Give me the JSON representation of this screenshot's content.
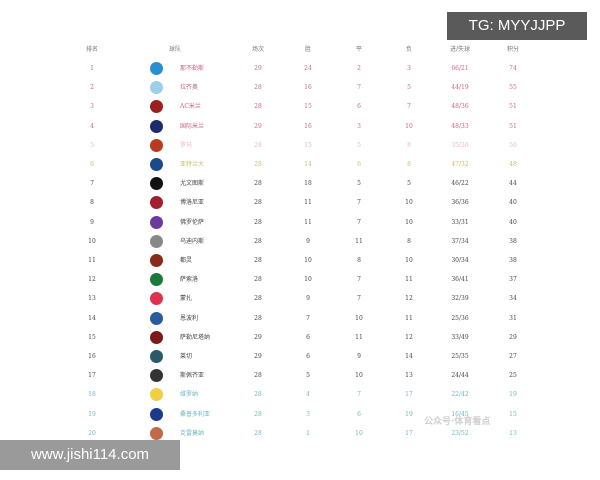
{
  "headers": [
    "排名",
    "球队",
    "场次",
    "胜",
    "平",
    "负",
    "进/失球",
    "积分"
  ],
  "zone_colors": {
    "champions": "#c4687e",
    "europa": "#e8b8c4",
    "conference": "#cdb96a",
    "normal": "#444444",
    "relegation": "#6cb6c0"
  },
  "rows": [
    {
      "rank": "1",
      "team": "那不勒斯",
      "played": "29",
      "won": "24",
      "drawn": "2",
      "lost": "3",
      "goals": "66/21",
      "points": "74",
      "zone": "champions",
      "logo": "#2a8fd0"
    },
    {
      "rank": "2",
      "team": "拉齐奥",
      "played": "28",
      "won": "16",
      "drawn": "7",
      "lost": "5",
      "goals": "44/19",
      "points": "55",
      "zone": "champions",
      "logo": "#9ad0e8"
    },
    {
      "rank": "3",
      "team": "AC米兰",
      "played": "28",
      "won": "15",
      "drawn": "6",
      "lost": "7",
      "goals": "48/36",
      "points": "51",
      "zone": "champions",
      "logo": "#9a2020"
    },
    {
      "rank": "4",
      "team": "国际米兰",
      "played": "29",
      "won": "16",
      "drawn": "3",
      "lost": "10",
      "goals": "48/33",
      "points": "51",
      "zone": "champions",
      "logo": "#1a2a6a"
    },
    {
      "rank": "5",
      "team": "罗马",
      "played": "28",
      "won": "15",
      "drawn": "5",
      "lost": "8",
      "goals": "35/26",
      "points": "50",
      "zone": "europa",
      "logo": "#b83a20"
    },
    {
      "rank": "6",
      "team": "亚特兰大",
      "played": "28",
      "won": "14",
      "drawn": "6",
      "lost": "8",
      "goals": "47/32",
      "points": "48",
      "zone": "conference",
      "logo": "#1a4a8a"
    },
    {
      "rank": "7",
      "team": "尤文图斯",
      "played": "28",
      "won": "18",
      "drawn": "5",
      "lost": "5",
      "goals": "46/22",
      "points": "44",
      "zone": "normal",
      "logo": "#111111"
    },
    {
      "rank": "8",
      "team": "博洛尼亚",
      "played": "28",
      "won": "11",
      "drawn": "7",
      "lost": "10",
      "goals": "36/36",
      "points": "40",
      "zone": "normal",
      "logo": "#a02030"
    },
    {
      "rank": "9",
      "team": "佛罗伦萨",
      "played": "28",
      "won": "11",
      "drawn": "7",
      "lost": "10",
      "goals": "33/31",
      "points": "40",
      "zone": "normal",
      "logo": "#6a3aa0"
    },
    {
      "rank": "10",
      "team": "乌迪内斯",
      "played": "28",
      "won": "9",
      "drawn": "11",
      "lost": "8",
      "goals": "37/34",
      "points": "38",
      "zone": "normal",
      "logo": "#888888"
    },
    {
      "rank": "11",
      "team": "都灵",
      "played": "28",
      "won": "10",
      "drawn": "8",
      "lost": "10",
      "goals": "30/34",
      "points": "38",
      "zone": "normal",
      "logo": "#8a2a1a"
    },
    {
      "rank": "12",
      "team": "萨索洛",
      "played": "28",
      "won": "10",
      "drawn": "7",
      "lost": "11",
      "goals": "36/41",
      "points": "37",
      "zone": "normal",
      "logo": "#1a7a3a"
    },
    {
      "rank": "13",
      "team": "蒙扎",
      "played": "28",
      "won": "9",
      "drawn": "7",
      "lost": "12",
      "goals": "32/39",
      "points": "34",
      "zone": "normal",
      "logo": "#e03050"
    },
    {
      "rank": "14",
      "team": "恩波利",
      "played": "28",
      "won": "7",
      "drawn": "10",
      "lost": "11",
      "goals": "25/36",
      "points": "31",
      "zone": "normal",
      "logo": "#2a5aa0"
    },
    {
      "rank": "15",
      "team": "萨勒尼塔纳",
      "played": "29",
      "won": "6",
      "drawn": "11",
      "lost": "12",
      "goals": "33/49",
      "points": "29",
      "zone": "normal",
      "logo": "#7a1a1a"
    },
    {
      "rank": "16",
      "team": "莱切",
      "played": "29",
      "won": "6",
      "drawn": "9",
      "lost": "14",
      "goals": "25/35",
      "points": "27",
      "zone": "normal",
      "logo": "#2a5a6a"
    },
    {
      "rank": "17",
      "team": "斯佩齐亚",
      "played": "28",
      "won": "5",
      "drawn": "10",
      "lost": "13",
      "goals": "24/44",
      "points": "25",
      "zone": "normal",
      "logo": "#333333"
    },
    {
      "rank": "18",
      "team": "维罗纳",
      "played": "28",
      "won": "4",
      "drawn": "7",
      "lost": "17",
      "goals": "22/42",
      "points": "19",
      "zone": "relegation",
      "logo": "#f0d040"
    },
    {
      "rank": "19",
      "team": "桑普多利亚",
      "played": "28",
      "won": "3",
      "drawn": "6",
      "lost": "19",
      "goals": "16/45",
      "points": "15",
      "zone": "relegation",
      "logo": "#1a3a8a"
    },
    {
      "rank": "20",
      "team": "克雷莫纳",
      "played": "28",
      "won": "1",
      "drawn": "10",
      "lost": "17",
      "goals": "23/52",
      "points": "13",
      "zone": "relegation",
      "logo": "#c06a4a"
    }
  ],
  "watermarks": {
    "tg": "TG: MYYJJPP",
    "site": "www.jishi114.com",
    "account": "公众号·体育看点"
  }
}
